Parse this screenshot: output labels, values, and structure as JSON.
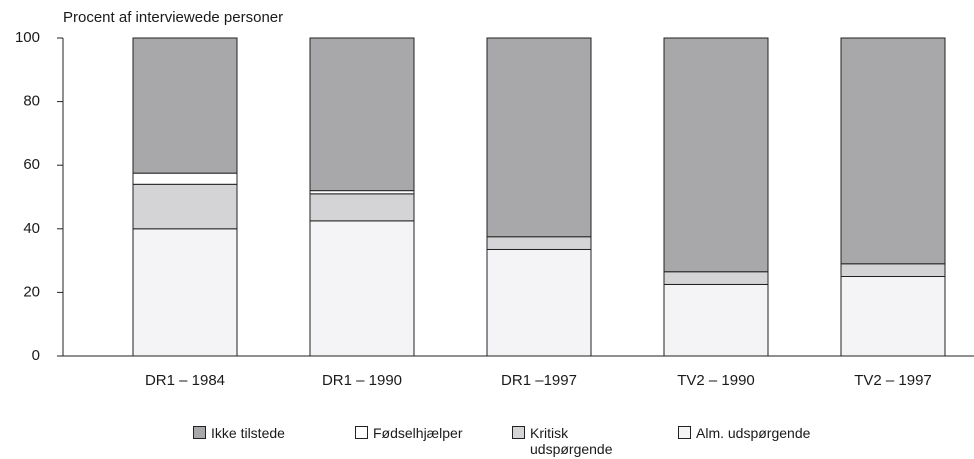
{
  "chart_data": {
    "type": "stacked_bar",
    "title": "Procent af interviewede personer",
    "categories": [
      "DR1 – 1984",
      "DR1 – 1990",
      "DR1 –1997",
      "TV2 – 1990",
      "TV2 – 1997"
    ],
    "series": [
      {
        "name": "Ikke tilstede",
        "color": "#a8a8ab",
        "values": [
          42.5,
          48,
          62.5,
          73.5,
          71
        ]
      },
      {
        "name": "Fødselhjælper",
        "color": "#ffffff",
        "values": [
          3.5,
          1,
          0,
          0,
          0
        ]
      },
      {
        "name": "Kritisk udspørgende",
        "color": "#d4d4d6",
        "values": [
          14,
          8.5,
          4,
          4,
          4
        ]
      },
      {
        "name": "Alm. udspørgende",
        "color": "#f4f4f6",
        "values": [
          40,
          42.5,
          33.5,
          22.5,
          25
        ]
      }
    ],
    "ylim": [
      0,
      100
    ],
    "yticks": [
      0,
      20,
      40,
      60,
      80,
      100
    ]
  }
}
